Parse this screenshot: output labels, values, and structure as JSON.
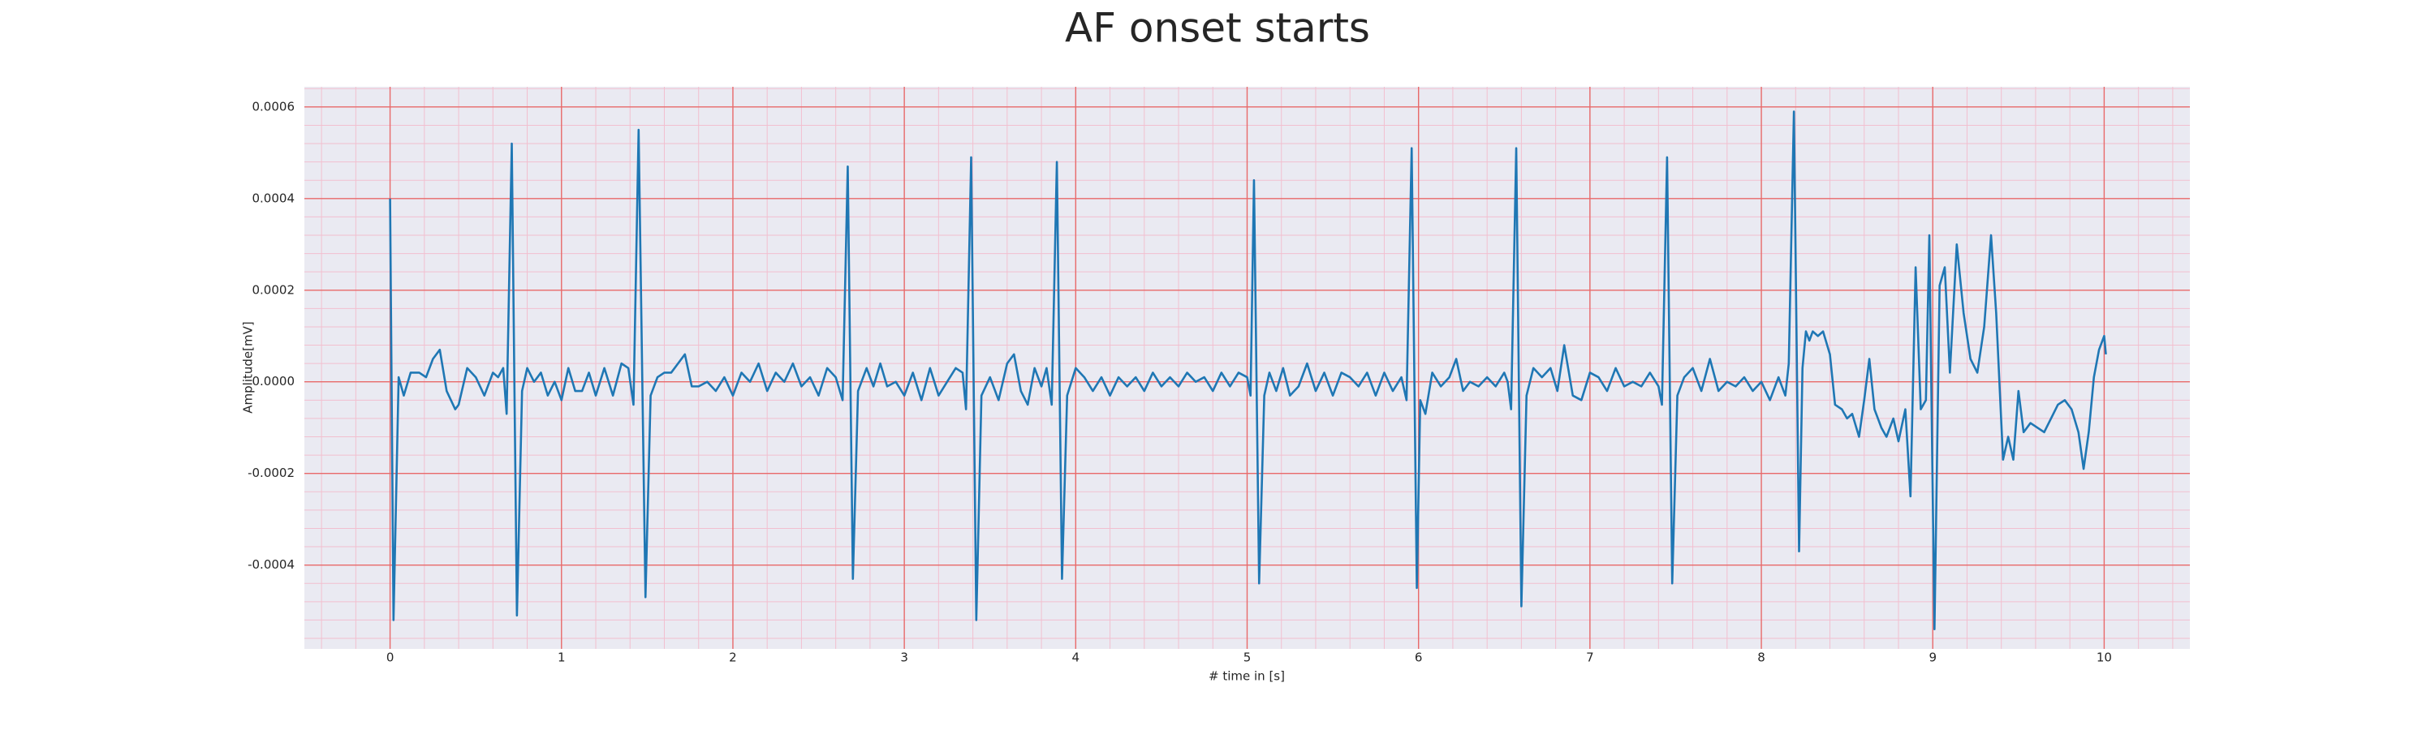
{
  "chart_data": {
    "type": "line",
    "title": "AF onset starts",
    "xlabel": "# time in [s]",
    "ylabel": "Amplitude[mV]",
    "color": "#1f77b4",
    "grid": true,
    "minor_grid": true,
    "grid_color": "#e86a6a",
    "minor_grid_color": "#f2bfcf",
    "background": "#eaeaf2",
    "xlim": [
      -0.5,
      10.5
    ],
    "ylim": [
      -0.000583,
      0.000644
    ],
    "xticks": [
      0,
      1,
      2,
      3,
      4,
      5,
      6,
      7,
      8,
      9,
      10
    ],
    "yticks": [
      -0.0004,
      -0.0002,
      {
        "value": 0,
        "label": "0.0000"
      },
      0.0002,
      0.0004,
      0.0006
    ],
    "x": [
      0.0,
      0.02,
      0.05,
      0.08,
      0.12,
      0.17,
      0.21,
      0.25,
      0.29,
      0.33,
      0.38,
      0.4,
      0.45,
      0.5,
      0.55,
      0.6,
      0.63,
      0.66,
      0.68,
      0.71,
      0.74,
      0.77,
      0.8,
      0.84,
      0.88,
      0.92,
      0.96,
      1.0,
      1.04,
      1.08,
      1.12,
      1.16,
      1.2,
      1.25,
      1.3,
      1.35,
      1.39,
      1.42,
      1.45,
      1.49,
      1.52,
      1.56,
      1.6,
      1.64,
      1.68,
      1.72,
      1.76,
      1.8,
      1.85,
      1.9,
      1.95,
      2.0,
      2.05,
      2.1,
      2.15,
      2.2,
      2.25,
      2.3,
      2.35,
      2.4,
      2.45,
      2.5,
      2.55,
      2.6,
      2.64,
      2.67,
      2.7,
      2.73,
      2.78,
      2.82,
      2.86,
      2.9,
      2.95,
      3.0,
      3.05,
      3.1,
      3.15,
      3.2,
      3.25,
      3.3,
      3.34,
      3.36,
      3.39,
      3.42,
      3.45,
      3.5,
      3.55,
      3.6,
      3.64,
      3.68,
      3.72,
      3.76,
      3.8,
      3.83,
      3.86,
      3.89,
      3.92,
      3.95,
      4.0,
      4.05,
      4.1,
      4.15,
      4.2,
      4.25,
      4.3,
      4.35,
      4.4,
      4.45,
      4.5,
      4.55,
      4.6,
      4.65,
      4.7,
      4.75,
      4.8,
      4.85,
      4.9,
      4.95,
      5.0,
      5.02,
      5.04,
      5.07,
      5.1,
      5.13,
      5.17,
      5.21,
      5.25,
      5.3,
      5.35,
      5.4,
      5.45,
      5.5,
      5.55,
      5.6,
      5.65,
      5.7,
      5.75,
      5.8,
      5.85,
      5.9,
      5.93,
      5.96,
      5.99,
      6.01,
      6.04,
      6.08,
      6.13,
      6.18,
      6.22,
      6.26,
      6.3,
      6.35,
      6.4,
      6.45,
      6.5,
      6.52,
      6.54,
      6.57,
      6.6,
      6.63,
      6.67,
      6.72,
      6.77,
      6.81,
      6.85,
      6.9,
      6.95,
      7.0,
      7.05,
      7.1,
      7.15,
      7.2,
      7.25,
      7.3,
      7.35,
      7.4,
      7.42,
      7.45,
      7.48,
      7.51,
      7.55,
      7.6,
      7.65,
      7.7,
      7.75,
      7.8,
      7.85,
      7.9,
      7.95,
      8.0,
      8.05,
      8.1,
      8.14,
      8.16,
      8.19,
      8.22,
      8.24,
      8.26,
      8.28,
      8.3,
      8.33,
      8.36,
      8.4,
      8.43,
      8.47,
      8.5,
      8.53,
      8.57,
      8.6,
      8.63,
      8.66,
      8.7,
      8.73,
      8.77,
      8.8,
      8.84,
      8.87,
      8.9,
      8.93,
      8.96,
      8.98,
      9.01,
      9.04,
      9.07,
      9.1,
      9.14,
      9.18,
      9.22,
      9.26,
      9.3,
      9.34,
      9.37,
      9.41,
      9.44,
      9.47,
      9.5,
      9.53,
      9.57,
      9.61,
      9.65,
      9.69,
      9.73,
      9.77,
      9.81,
      9.85,
      9.88,
      9.91,
      9.94,
      9.97,
      10.0,
      10.01
    ],
    "values": [
      0.0004,
      -0.00052,
      1e-05,
      -3e-05,
      2e-05,
      2e-05,
      1e-05,
      5e-05,
      7e-05,
      -2e-05,
      -6e-05,
      -5e-05,
      3e-05,
      1e-05,
      -3e-05,
      2e-05,
      1e-05,
      3e-05,
      -7e-05,
      0.00052,
      -0.00051,
      -2e-05,
      3e-05,
      0.0,
      2e-05,
      -3e-05,
      0.0,
      -4e-05,
      3e-05,
      -2e-05,
      -2e-05,
      2e-05,
      -3e-05,
      3e-05,
      -3e-05,
      4e-05,
      3e-05,
      -5e-05,
      0.00055,
      -0.00047,
      -3e-05,
      1e-05,
      2e-05,
      2e-05,
      4e-05,
      6e-05,
      -1e-05,
      -1e-05,
      0.0,
      -2e-05,
      1e-05,
      -3e-05,
      2e-05,
      0.0,
      4e-05,
      -2e-05,
      2e-05,
      0.0,
      4e-05,
      -1e-05,
      1e-05,
      -3e-05,
      3e-05,
      1e-05,
      -4e-05,
      0.00047,
      -0.00043,
      -2e-05,
      3e-05,
      -1e-05,
      4e-05,
      -1e-05,
      0.0,
      -3e-05,
      2e-05,
      -4e-05,
      3e-05,
      -3e-05,
      0.0,
      3e-05,
      2e-05,
      -6e-05,
      0.00049,
      -0.00052,
      -3e-05,
      1e-05,
      -4e-05,
      4e-05,
      6e-05,
      -2e-05,
      -5e-05,
      3e-05,
      -1e-05,
      3e-05,
      -5e-05,
      0.00048,
      -0.00043,
      -3e-05,
      3e-05,
      1e-05,
      -2e-05,
      1e-05,
      -3e-05,
      1e-05,
      -1e-05,
      1e-05,
      -2e-05,
      2e-05,
      -1e-05,
      1e-05,
      -1e-05,
      2e-05,
      0.0,
      1e-05,
      -2e-05,
      2e-05,
      -1e-05,
      2e-05,
      1e-05,
      -3e-05,
      0.00044,
      -0.00044,
      -3e-05,
      2e-05,
      -2e-05,
      3e-05,
      -3e-05,
      -1e-05,
      4e-05,
      -2e-05,
      2e-05,
      -3e-05,
      2e-05,
      1e-05,
      -1e-05,
      2e-05,
      -3e-05,
      2e-05,
      -2e-05,
      1e-05,
      -4e-05,
      0.00051,
      -0.00045,
      -4e-05,
      -7e-05,
      2e-05,
      -1e-05,
      1e-05,
      5e-05,
      -2e-05,
      0.0,
      -1e-05,
      1e-05,
      -1e-05,
      2e-05,
      0.0,
      -6e-05,
      0.00051,
      -0.00049,
      -3e-05,
      3e-05,
      1e-05,
      3e-05,
      -2e-05,
      8e-05,
      -3e-05,
      -4e-05,
      2e-05,
      1e-05,
      -2e-05,
      3e-05,
      -1e-05,
      0.0,
      -1e-05,
      2e-05,
      -1e-05,
      -5e-05,
      0.00049,
      -0.00044,
      -3e-05,
      1e-05,
      3e-05,
      -2e-05,
      5e-05,
      -2e-05,
      0.0,
      -1e-05,
      1e-05,
      -2e-05,
      0.0,
      -4e-05,
      1e-05,
      -3e-05,
      4e-05,
      0.00059,
      -0.00037,
      3e-05,
      0.00011,
      9e-05,
      0.00011,
      0.0001,
      0.00011,
      6e-05,
      -5e-05,
      -6e-05,
      -8e-05,
      -7e-05,
      -0.00012,
      -4e-05,
      5e-05,
      -6e-05,
      -0.0001,
      -0.00012,
      -8e-05,
      -0.00013,
      -6e-05,
      -0.00025,
      0.00025,
      -6e-05,
      -4e-05,
      0.00032,
      -0.00054,
      0.00021,
      0.00025,
      2e-05,
      0.0003,
      0.00015,
      5e-05,
      2e-05,
      0.00012,
      0.00032,
      0.00015,
      -0.00017,
      -0.00012,
      -0.00017,
      -2e-05,
      -0.00011,
      -9e-05,
      -0.0001,
      -0.00011,
      -8e-05,
      -5e-05,
      -4e-05,
      -6e-05,
      -0.00011,
      -0.00019,
      -0.00011,
      1e-05,
      7e-05,
      0.0001,
      6e-05
    ]
  }
}
